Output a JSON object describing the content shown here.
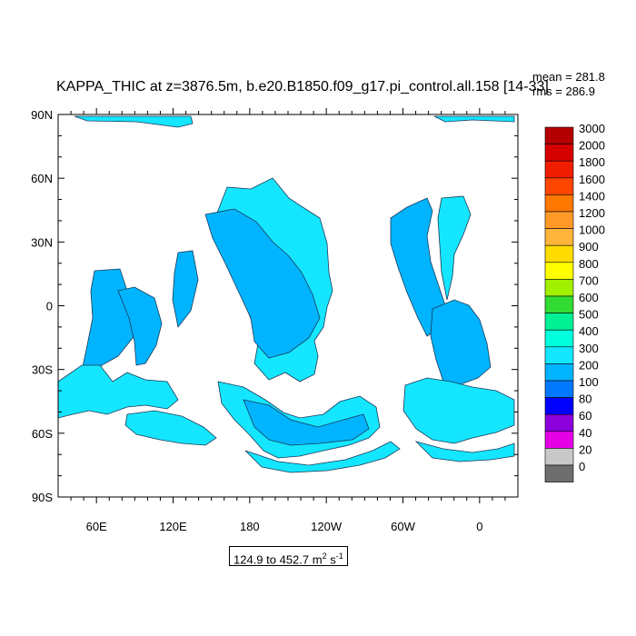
{
  "title": "KAPPA_THIC at z=3876.5m, b.e20.B1850.f09_g17.pi_control.all.158 [14-33]",
  "stats": {
    "mean": "mean = 281.8",
    "rms": "rms = 286.9"
  },
  "range_label": {
    "text": "124.9 to 452.7 m",
    "sup1": "2",
    "unit": " s",
    "sup2": "-1"
  },
  "chart_data": {
    "type": "heatmap",
    "title": "KAPPA_THIC at z=3876.5m, b.e20.B1850.f09_g17.pi_control.all.158 [14-33]",
    "xlabel": "",
    "ylabel": "",
    "x_ticks": [
      "60E",
      "120E",
      "180",
      "120W",
      "60W",
      "0"
    ],
    "y_ticks": [
      "90N",
      "60N",
      "30N",
      "0",
      "30S",
      "60S",
      "90S"
    ],
    "xlim": [
      30,
      390
    ],
    "ylim": [
      -90,
      90
    ],
    "value_range": [
      124.9,
      452.7
    ],
    "units": "m2 s-1",
    "mean": 281.8,
    "rms": 286.9,
    "dominant_levels": [
      300,
      400
    ],
    "colorbar": {
      "labels": [
        "3000",
        "2000",
        "1800",
        "1600",
        "1400",
        "1200",
        "1000",
        "900",
        "800",
        "700",
        "600",
        "500",
        "400",
        "300",
        "200",
        "100",
        "80",
        "60",
        "40",
        "20",
        "0"
      ],
      "colors": [
        "#b40000",
        "#d70000",
        "#f01e00",
        "#ff4600",
        "#ff7800",
        "#ff9a28",
        "#ffb43c",
        "#ffdc00",
        "#ffff00",
        "#a0f000",
        "#32dc32",
        "#00f096",
        "#00ffdc",
        "#14e6ff",
        "#00b4ff",
        "#0078ff",
        "#0000ff",
        "#8c00dc",
        "#e600e6",
        "#c8c8c8",
        "#6e6e6e"
      ]
    }
  }
}
